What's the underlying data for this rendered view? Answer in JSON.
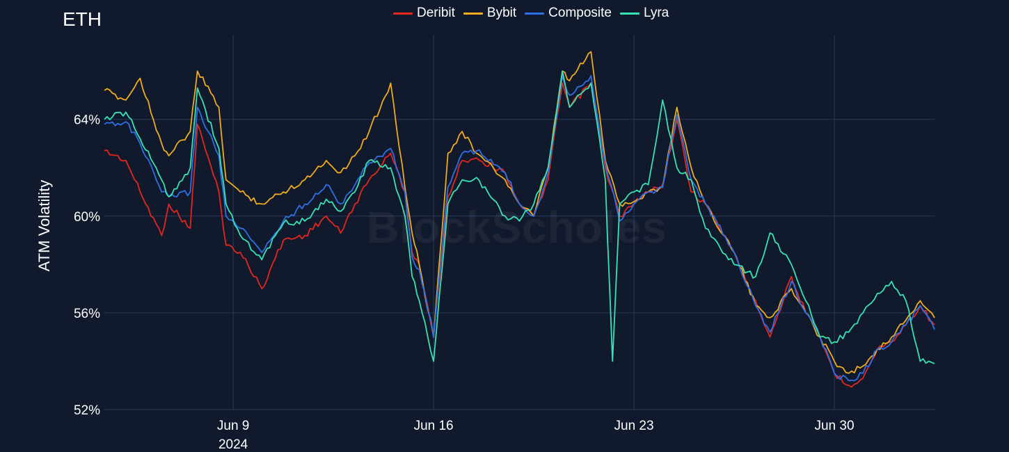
{
  "title": "ETH",
  "watermark": "BlockScholes",
  "chart_data": {
    "type": "line",
    "title": "ETH",
    "xlabel": "",
    "ylabel": "ATM Volatility",
    "y_unit": "%",
    "ylim": [
      52,
      67.5
    ],
    "y_ticks": [
      {
        "value": 52,
        "label": "52%"
      },
      {
        "value": 56,
        "label": "56%"
      },
      {
        "value": 60,
        "label": "60%"
      },
      {
        "value": 64,
        "label": "64%"
      }
    ],
    "x_range": [
      "2024-06-04T12:00",
      "2024-07-03T12:00"
    ],
    "x_ticks": [
      {
        "value": "2024-06-09",
        "label": "Jun 9",
        "sublabel": "2024"
      },
      {
        "value": "2024-06-16",
        "label": "Jun 16",
        "sublabel": ""
      },
      {
        "value": "2024-06-23",
        "label": "Jun 23",
        "sublabel": ""
      },
      {
        "value": "2024-06-30",
        "label": "Jun 30",
        "sublabel": ""
      }
    ],
    "grid": true,
    "legend": "top-center",
    "series": [
      {
        "name": "Deribit",
        "color": "#e5261f",
        "x": [
          "2024-06-04T12:00",
          "2024-06-05T06:00",
          "2024-06-05T18:00",
          "2024-06-06T12:00",
          "2024-06-06T18:00",
          "2024-06-07T12:00",
          "2024-06-07T18:00",
          "2024-06-08T12:00",
          "2024-06-08T18:00",
          "2024-06-09T06:00",
          "2024-06-10T00:00",
          "2024-06-10T18:00",
          "2024-06-11T12:00",
          "2024-06-12T06:00",
          "2024-06-12T18:00",
          "2024-06-13T06:00",
          "2024-06-13T18:00",
          "2024-06-14T12:00",
          "2024-06-15T00:00",
          "2024-06-15T06:00",
          "2024-06-15T12:00",
          "2024-06-16T00:00",
          "2024-06-16T12:00",
          "2024-06-17T00:00",
          "2024-06-17T12:00",
          "2024-06-18T12:00",
          "2024-06-19T00:00",
          "2024-06-19T12:00",
          "2024-06-20T00:00",
          "2024-06-20T12:00",
          "2024-06-20T18:00",
          "2024-06-21T12:00",
          "2024-06-22T00:00",
          "2024-06-22T12:00",
          "2024-06-23T00:00",
          "2024-06-23T12:00",
          "2024-06-24T00:00",
          "2024-06-24T12:00",
          "2024-06-25T00:00",
          "2024-06-25T12:00",
          "2024-06-26T12:00",
          "2024-06-27T06:00",
          "2024-06-27T18:00",
          "2024-06-28T12:00",
          "2024-06-29T00:00",
          "2024-06-29T12:00",
          "2024-06-30T00:00",
          "2024-06-30T12:00",
          "2024-07-01T00:00",
          "2024-07-01T12:00",
          "2024-07-02T00:00",
          "2024-07-02T12:00",
          "2024-07-03T00:00",
          "2024-07-03T12:00"
        ],
        "values": [
          62.7,
          62.3,
          61.0,
          59.2,
          60.5,
          59.5,
          63.8,
          61.0,
          58.8,
          58.5,
          57.0,
          59.0,
          59.2,
          60.0,
          59.3,
          60.5,
          61.5,
          62.6,
          61.0,
          58.5,
          58.0,
          55.0,
          60.8,
          62.3,
          62.4,
          61.8,
          60.5,
          60.0,
          61.5,
          65.5,
          64.5,
          65.5,
          62.0,
          60.0,
          60.5,
          61.0,
          61.3,
          64.0,
          61.0,
          60.5,
          58.5,
          56.5,
          55.0,
          57.5,
          56.0,
          55.0,
          53.5,
          53.0,
          53.3,
          54.5,
          54.8,
          55.5,
          56.3,
          55.5
        ]
      },
      {
        "name": "Bybit",
        "color": "#f1ac1c",
        "x": [
          "2024-06-04T12:00",
          "2024-06-05T06:00",
          "2024-06-05T18:00",
          "2024-06-06T12:00",
          "2024-06-06T18:00",
          "2024-06-07T12:00",
          "2024-06-07T18:00",
          "2024-06-08T12:00",
          "2024-06-08T18:00",
          "2024-06-09T06:00",
          "2024-06-10T00:00",
          "2024-06-10T18:00",
          "2024-06-11T12:00",
          "2024-06-12T06:00",
          "2024-06-12T18:00",
          "2024-06-13T06:00",
          "2024-06-13T18:00",
          "2024-06-14T12:00",
          "2024-06-15T00:00",
          "2024-06-15T06:00",
          "2024-06-15T12:00",
          "2024-06-16T00:00",
          "2024-06-16T12:00",
          "2024-06-17T00:00",
          "2024-06-17T12:00",
          "2024-06-18T12:00",
          "2024-06-19T00:00",
          "2024-06-19T12:00",
          "2024-06-20T00:00",
          "2024-06-20T12:00",
          "2024-06-20T18:00",
          "2024-06-21T12:00",
          "2024-06-22T00:00",
          "2024-06-22T12:00",
          "2024-06-23T00:00",
          "2024-06-23T12:00",
          "2024-06-24T00:00",
          "2024-06-24T12:00",
          "2024-06-25T00:00",
          "2024-06-25T12:00",
          "2024-06-26T12:00",
          "2024-06-27T06:00",
          "2024-06-27T18:00",
          "2024-06-28T12:00",
          "2024-06-29T00:00",
          "2024-06-29T12:00",
          "2024-06-30T00:00",
          "2024-06-30T12:00",
          "2024-07-01T00:00",
          "2024-07-01T12:00",
          "2024-07-02T00:00",
          "2024-07-02T12:00",
          "2024-07-03T00:00",
          "2024-07-03T12:00"
        ],
        "values": [
          65.2,
          64.8,
          65.7,
          63.0,
          62.5,
          63.5,
          66.0,
          64.5,
          61.5,
          61.0,
          60.5,
          61.0,
          61.5,
          62.3,
          61.8,
          62.5,
          63.5,
          65.5,
          61.2,
          59.3,
          58.0,
          55.0,
          62.6,
          63.5,
          62.6,
          61.5,
          60.5,
          60.0,
          62.0,
          66.0,
          65.6,
          66.8,
          62.3,
          60.5,
          60.6,
          61.0,
          61.2,
          64.5,
          62.0,
          60.5,
          58.5,
          56.3,
          55.8,
          57.0,
          56.0,
          55.0,
          54.0,
          53.5,
          53.8,
          54.5,
          55.0,
          55.7,
          56.5,
          55.8
        ]
      },
      {
        "name": "Composite",
        "color": "#2e6fe8",
        "x": [
          "2024-06-04T12:00",
          "2024-06-05T06:00",
          "2024-06-05T18:00",
          "2024-06-06T12:00",
          "2024-06-06T18:00",
          "2024-06-07T12:00",
          "2024-06-07T18:00",
          "2024-06-08T12:00",
          "2024-06-08T18:00",
          "2024-06-09T06:00",
          "2024-06-10T00:00",
          "2024-06-10T18:00",
          "2024-06-11T12:00",
          "2024-06-12T06:00",
          "2024-06-12T18:00",
          "2024-06-13T06:00",
          "2024-06-13T18:00",
          "2024-06-14T12:00",
          "2024-06-15T00:00",
          "2024-06-15T06:00",
          "2024-06-15T12:00",
          "2024-06-16T00:00",
          "2024-06-16T12:00",
          "2024-06-17T00:00",
          "2024-06-17T12:00",
          "2024-06-18T12:00",
          "2024-06-19T00:00",
          "2024-06-19T12:00",
          "2024-06-20T00:00",
          "2024-06-20T12:00",
          "2024-06-20T18:00",
          "2024-06-21T12:00",
          "2024-06-22T00:00",
          "2024-06-22T12:00",
          "2024-06-23T00:00",
          "2024-06-23T12:00",
          "2024-06-24T00:00",
          "2024-06-24T12:00",
          "2024-06-25T00:00",
          "2024-06-25T12:00",
          "2024-06-26T12:00",
          "2024-06-27T06:00",
          "2024-06-27T18:00",
          "2024-06-28T12:00",
          "2024-06-29T00:00",
          "2024-06-29T12:00",
          "2024-06-30T00:00",
          "2024-06-30T12:00",
          "2024-07-01T00:00",
          "2024-07-01T12:00",
          "2024-07-02T00:00",
          "2024-07-02T12:00",
          "2024-07-03T00:00",
          "2024-07-03T12:00"
        ],
        "values": [
          63.8,
          63.9,
          63.0,
          61.0,
          60.8,
          61.0,
          64.5,
          62.5,
          60.0,
          59.5,
          58.5,
          59.8,
          60.5,
          61.3,
          60.5,
          61.3,
          62.2,
          62.8,
          61.0,
          58.3,
          57.8,
          55.0,
          61.2,
          62.6,
          62.7,
          61.8,
          60.5,
          60.0,
          61.8,
          65.8,
          65.0,
          65.8,
          62.2,
          59.8,
          60.5,
          61.0,
          61.2,
          64.2,
          61.5,
          60.5,
          58.5,
          56.3,
          55.2,
          57.3,
          56.0,
          55.0,
          53.5,
          53.2,
          53.5,
          54.5,
          54.8,
          55.5,
          56.3,
          55.3
        ]
      },
      {
        "name": "Lyra",
        "color": "#37e3b1",
        "x": [
          "2024-06-04T12:00",
          "2024-06-05T06:00",
          "2024-06-05T18:00",
          "2024-06-06T12:00",
          "2024-06-06T18:00",
          "2024-06-07T12:00",
          "2024-06-07T18:00",
          "2024-06-08T12:00",
          "2024-06-08T18:00",
          "2024-06-09T06:00",
          "2024-06-10T00:00",
          "2024-06-10T18:00",
          "2024-06-11T12:00",
          "2024-06-12T06:00",
          "2024-06-12T18:00",
          "2024-06-13T06:00",
          "2024-06-13T18:00",
          "2024-06-14T12:00",
          "2024-06-15T00:00",
          "2024-06-15T06:00",
          "2024-06-15T12:00",
          "2024-06-16T00:00",
          "2024-06-16T12:00",
          "2024-06-17T00:00",
          "2024-06-17T12:00",
          "2024-06-18T12:00",
          "2024-06-19T00:00",
          "2024-06-19T12:00",
          "2024-06-20T00:00",
          "2024-06-20T12:00",
          "2024-06-20T18:00",
          "2024-06-21T12:00",
          "2024-06-22T00:00",
          "2024-06-22T06:00",
          "2024-06-22T12:00",
          "2024-06-23T00:00",
          "2024-06-23T12:00",
          "2024-06-24T00:00",
          "2024-06-24T12:00",
          "2024-06-25T00:00",
          "2024-06-25T12:00",
          "2024-06-26T12:00",
          "2024-06-27T06:00",
          "2024-06-27T18:00",
          "2024-06-28T12:00",
          "2024-06-29T00:00",
          "2024-06-29T12:00",
          "2024-06-30T00:00",
          "2024-06-30T12:00",
          "2024-07-01T00:00",
          "2024-07-01T12:00",
          "2024-07-02T00:00",
          "2024-07-02T12:00",
          "2024-07-03T00:00",
          "2024-07-03T12:00"
        ],
        "values": [
          64.0,
          64.3,
          63.2,
          61.5,
          60.8,
          62.0,
          65.3,
          62.8,
          60.5,
          59.2,
          58.2,
          59.7,
          59.8,
          60.7,
          60.2,
          61.0,
          62.3,
          62.0,
          60.0,
          57.5,
          56.5,
          54.0,
          60.5,
          61.5,
          61.6,
          60.0,
          59.8,
          60.5,
          62.0,
          66.0,
          64.5,
          65.5,
          61.5,
          54.0,
          60.5,
          61.0,
          61.3,
          64.8,
          62.0,
          61.5,
          59.5,
          58.0,
          57.5,
          59.3,
          58.0,
          56.5,
          55.0,
          54.8,
          55.2,
          56.0,
          56.8,
          57.3,
          56.5,
          54.0,
          53.9
        ]
      }
    ]
  }
}
